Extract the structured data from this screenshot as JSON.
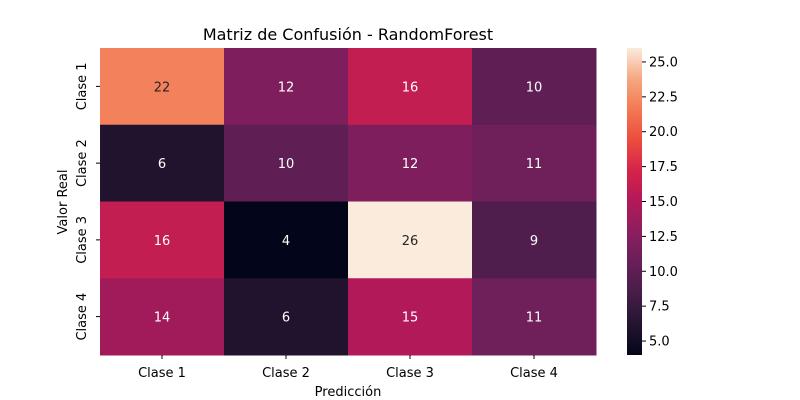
{
  "chart_data": {
    "type": "heatmap",
    "title": "Matriz de Confusión - RandomForest",
    "xlabel": "Predicción",
    "ylabel": "Valor Real",
    "x_categories": [
      "Clase 1",
      "Clase 2",
      "Clase 3",
      "Clase 4"
    ],
    "y_categories": [
      "Clase 1",
      "Clase 2",
      "Clase 3",
      "Clase 4"
    ],
    "values": [
      [
        22,
        12,
        16,
        10
      ],
      [
        6,
        10,
        12,
        11
      ],
      [
        16,
        4,
        26,
        9
      ],
      [
        14,
        6,
        15,
        11
      ]
    ],
    "colormap": "rocket",
    "colorbar": {
      "range": [
        4,
        26
      ],
      "ticks": [
        5.0,
        7.5,
        10.0,
        12.5,
        15.0,
        17.5,
        20.0,
        22.5,
        25.0
      ],
      "tick_labels": [
        "5.0",
        "7.5",
        "10.0",
        "12.5",
        "15.0",
        "17.5",
        "20.0",
        "22.5",
        "25.0"
      ]
    },
    "annotation_colors": {
      "dark_cell": "#ffffff",
      "light_cell": "#262626"
    }
  }
}
